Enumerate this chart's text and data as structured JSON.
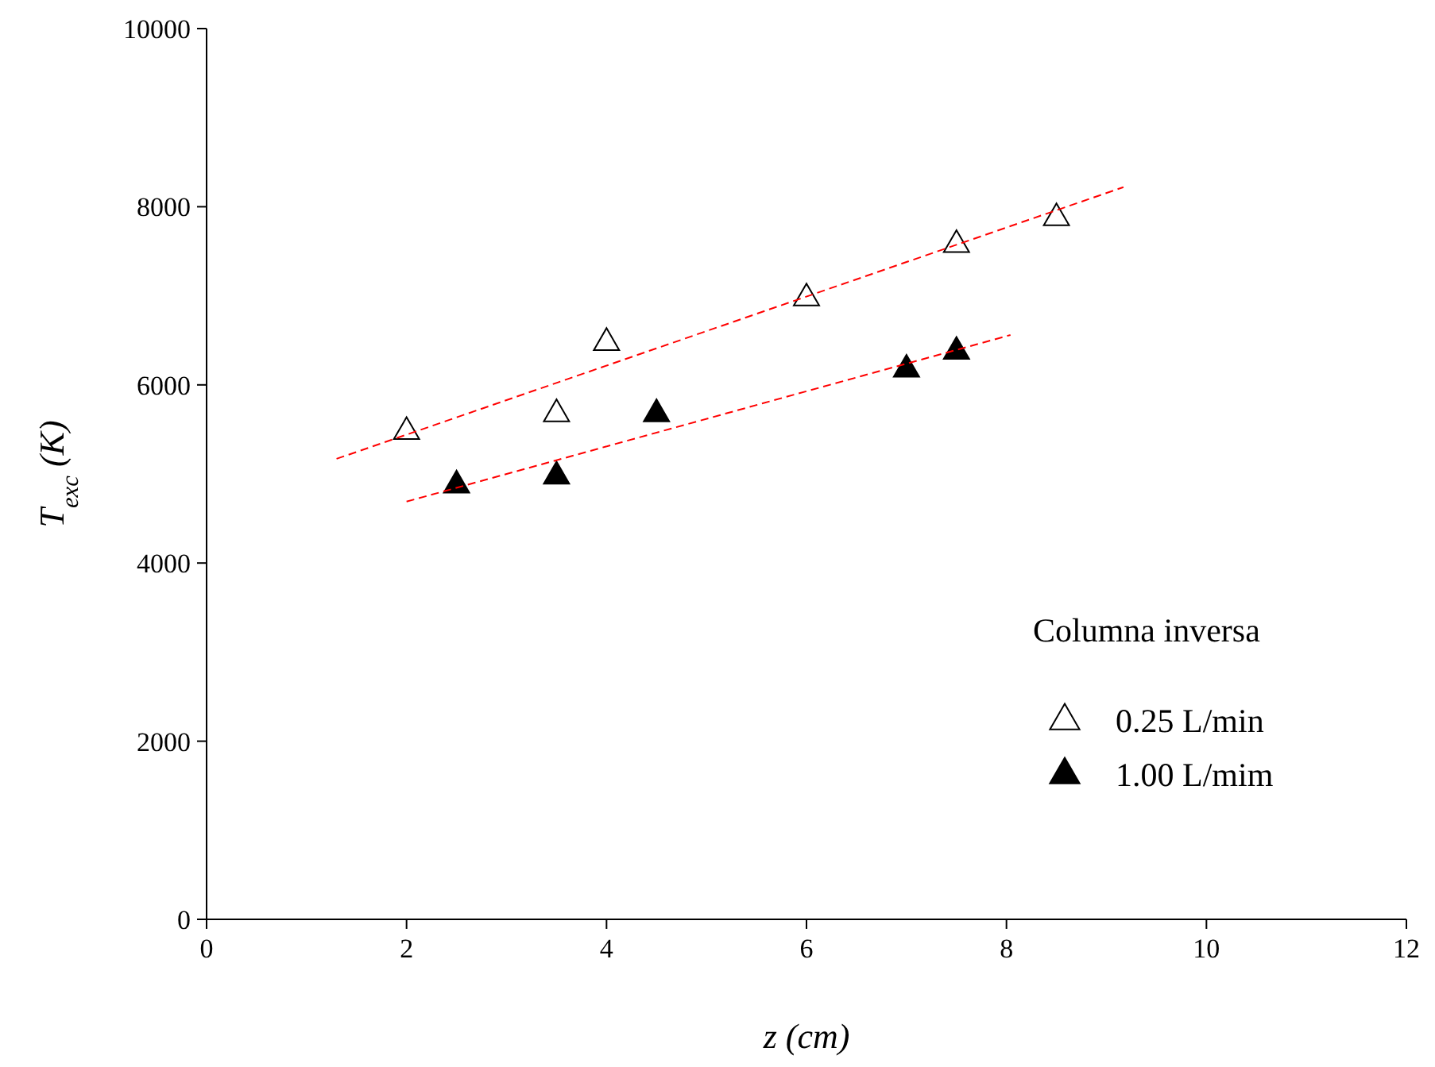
{
  "chart_data": {
    "type": "scatter",
    "xlabel": "z  (cm)",
    "ylabel": "T$_{exc}$  (K)",
    "legend_title": "Columna inversa",
    "legend": "bottom right",
    "xlim": [
      0,
      12
    ],
    "ylim": [
      0,
      10000
    ],
    "xticks": [
      0,
      2,
      4,
      6,
      8,
      10,
      12
    ],
    "yticks": [
      0,
      2000,
      4000,
      6000,
      8000,
      10000
    ],
    "grid": false,
    "series": [
      {
        "name": "0.25 L/min",
        "marker": "triangle",
        "color": "#ffffff",
        "x": [
          2,
          3.5,
          4,
          6,
          7.5,
          8.5
        ],
        "values": [
          5500,
          5700,
          6500,
          7000,
          7600,
          7900
        ]
      },
      {
        "name": "1.00 L/mim",
        "marker": "triangle",
        "color": "#000000",
        "x": [
          2.5,
          3.5,
          4.5,
          7,
          7.5
        ],
        "values": [
          4900,
          5000,
          5700,
          6200,
          6400
        ]
      },
      {
        "type": "line",
        "marker": "none",
        "line_style": "dashed",
        "color": "#ff0000",
        "x": [
          1.3,
          9.17
        ],
        "values": [
          5170,
          8220
        ]
      },
      {
        "type": "line",
        "marker": "none",
        "line_style": "dashed",
        "color": "#ff0000",
        "x": [
          2,
          8.04
        ],
        "values": [
          4690,
          6560
        ]
      }
    ]
  }
}
